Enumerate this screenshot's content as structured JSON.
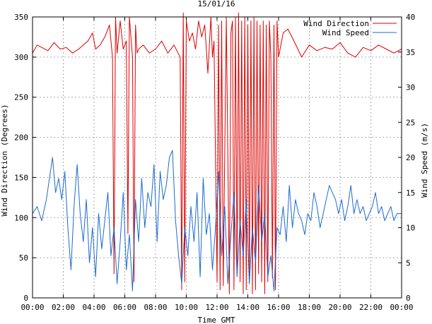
{
  "chart_data": {
    "type": "line",
    "title": "15/01/16",
    "xlabel": "Time GMT",
    "ylabel_left": "Wind Direction (Degrees)",
    "ylabel_right": "Wind Speed (m/s)",
    "x_unit": "hours",
    "xlim": [
      0,
      24
    ],
    "ylim_left": [
      0,
      350
    ],
    "ylim_right": [
      0,
      40
    ],
    "x_ticks": [
      0,
      2,
      4,
      6,
      8,
      10,
      12,
      14,
      16,
      18,
      20,
      22,
      24
    ],
    "x_tick_labels": [
      "00:00",
      "02:00",
      "04:00",
      "06:00",
      "08:00",
      "10:00",
      "12:00",
      "14:00",
      "16:00",
      "18:00",
      "20:00",
      "22:00",
      "00:00"
    ],
    "y_ticks_left": [
      0,
      50,
      100,
      150,
      200,
      250,
      300,
      350
    ],
    "y_ticks_right": [
      0,
      5,
      10,
      15,
      20,
      25,
      30,
      35,
      40
    ],
    "grid": true,
    "legend_position": "top-right",
    "series": [
      {
        "name": "Wind Direction",
        "axis": "left",
        "color": "#dd0000",
        "x": [
          0.0,
          0.3,
          0.6,
          1.0,
          1.4,
          1.8,
          2.2,
          2.6,
          3.0,
          3.3,
          3.6,
          3.9,
          4.1,
          4.4,
          4.7,
          5.0,
          5.2,
          5.3,
          5.4,
          5.5,
          5.7,
          5.9,
          6.1,
          6.2,
          6.3,
          6.5,
          6.6,
          6.7,
          6.8,
          6.9,
          7.2,
          7.6,
          8.0,
          8.4,
          8.8,
          9.2,
          9.6,
          9.7,
          9.8,
          9.9,
          10.0,
          10.2,
          10.4,
          10.6,
          10.8,
          11.0,
          11.2,
          11.4,
          11.6,
          11.7,
          11.8,
          12.0,
          12.1,
          12.2,
          12.3,
          12.4,
          12.6,
          12.8,
          12.9,
          13.0,
          13.1,
          13.2,
          13.3,
          13.4,
          13.5,
          13.6,
          13.7,
          13.8,
          13.9,
          14.0,
          14.1,
          14.2,
          14.3,
          14.4,
          14.5,
          14.6,
          14.7,
          14.8,
          14.9,
          15.0,
          15.1,
          15.2,
          15.3,
          15.4,
          15.5,
          15.6,
          15.7,
          15.8,
          15.9,
          16.0,
          16.3,
          16.6,
          17.0,
          17.5,
          18.0,
          18.5,
          19.0,
          19.5,
          20.0,
          20.5,
          21.0,
          21.5,
          22.0,
          22.5,
          23.0,
          23.5,
          24.0
        ],
        "values": [
          305,
          315,
          312,
          308,
          318,
          310,
          312,
          305,
          310,
          315,
          320,
          330,
          310,
          315,
          325,
          340,
          300,
          30,
          350,
          305,
          345,
          310,
          320,
          80,
          350,
          300,
          20,
          340,
          305,
          310,
          315,
          305,
          310,
          320,
          305,
          315,
          300,
          10,
          355,
          20,
          345,
          320,
          330,
          310,
          345,
          325,
          340,
          280,
          350,
          300,
          320,
          20,
          340,
          10,
          345,
          15,
          350,
          5,
          330,
          345,
          10,
          350,
          30,
          355,
          20,
          345,
          5,
          350,
          10,
          340,
          20,
          345,
          5,
          350,
          10,
          345,
          30,
          340,
          20,
          345,
          5,
          340,
          20,
          345,
          300,
          25,
          340,
          10,
          345,
          300,
          330,
          335,
          320,
          300,
          315,
          308,
          312,
          310,
          318,
          305,
          300,
          312,
          308,
          315,
          310,
          305,
          310
        ]
      },
      {
        "name": "Wind Speed",
        "axis": "right",
        "color": "#1c6bd0",
        "x": [
          0.0,
          0.3,
          0.6,
          0.9,
          1.1,
          1.3,
          1.5,
          1.7,
          1.9,
          2.1,
          2.3,
          2.5,
          2.7,
          2.9,
          3.1,
          3.3,
          3.5,
          3.7,
          3.9,
          4.1,
          4.3,
          4.5,
          4.7,
          4.9,
          5.1,
          5.3,
          5.5,
          5.7,
          5.9,
          6.1,
          6.3,
          6.5,
          6.7,
          6.9,
          7.1,
          7.3,
          7.5,
          7.7,
          7.9,
          8.1,
          8.3,
          8.5,
          8.7,
          8.9,
          9.1,
          9.3,
          9.5,
          9.7,
          9.9,
          10.1,
          10.3,
          10.5,
          10.7,
          10.9,
          11.1,
          11.3,
          11.5,
          11.7,
          11.9,
          12.1,
          12.3,
          12.5,
          12.7,
          12.9,
          13.1,
          13.3,
          13.5,
          13.7,
          13.9,
          14.1,
          14.3,
          14.5,
          14.7,
          14.9,
          15.1,
          15.3,
          15.5,
          15.7,
          15.9,
          16.1,
          16.3,
          16.5,
          16.7,
          16.9,
          17.1,
          17.3,
          17.5,
          17.7,
          17.9,
          18.1,
          18.3,
          18.5,
          18.7,
          18.9,
          19.1,
          19.3,
          19.5,
          19.7,
          19.9,
          20.1,
          20.3,
          20.5,
          20.7,
          20.9,
          21.1,
          21.3,
          21.5,
          21.7,
          21.9,
          22.1,
          22.3,
          22.5,
          22.7,
          22.9,
          23.1,
          23.3,
          23.5,
          23.7,
          24.0
        ],
        "values": [
          12,
          13,
          11,
          14,
          17,
          20,
          15,
          17,
          14,
          18,
          10,
          4,
          13,
          19,
          12,
          8,
          14,
          5,
          10,
          3,
          12,
          7,
          11,
          15,
          6,
          10,
          2,
          8,
          15,
          4,
          9,
          1,
          14,
          8,
          17,
          10,
          15,
          13,
          19,
          8,
          18,
          14,
          16,
          20,
          21,
          11,
          6,
          2,
          10,
          6,
          13,
          8,
          15,
          3,
          17,
          9,
          12,
          4,
          10,
          18,
          6,
          13,
          2,
          9,
          15,
          3,
          11,
          6,
          14,
          2,
          10,
          5,
          16,
          8,
          12,
          3,
          6,
          1,
          10,
          9,
          13,
          8,
          16,
          10,
          14,
          12,
          11,
          9,
          12,
          11,
          15,
          13,
          10,
          12,
          14,
          16,
          15,
          14,
          12,
          14,
          11,
          13,
          16,
          12,
          14,
          12,
          13,
          11,
          12,
          13,
          15,
          12,
          13,
          11,
          12,
          13,
          11,
          12,
          12
        ]
      }
    ]
  }
}
